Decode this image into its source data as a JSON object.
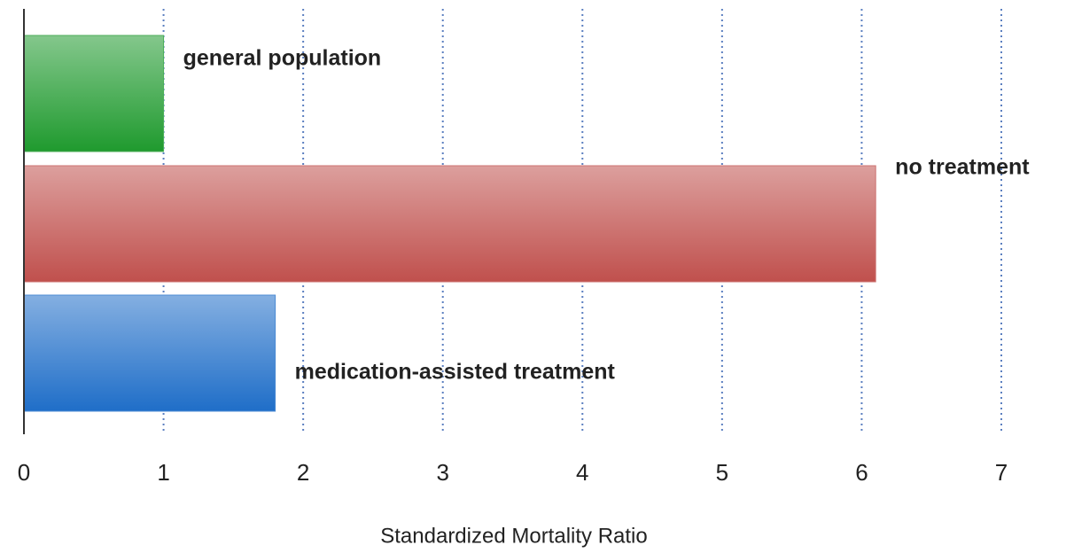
{
  "chart_data": {
    "type": "bar",
    "orientation": "horizontal",
    "categories": [
      "general population",
      "no treatment",
      "medication-assisted treatment"
    ],
    "values": [
      1.0,
      6.1,
      1.8
    ],
    "colors": [
      "#1f9a2e",
      "#c0504d",
      "#1f6ec8"
    ],
    "xlabel": "Standardized Mortality Ratio",
    "xlim": [
      0,
      7
    ],
    "xticks": [
      0,
      1,
      2,
      3,
      4,
      5,
      6,
      7
    ],
    "grid": true
  }
}
